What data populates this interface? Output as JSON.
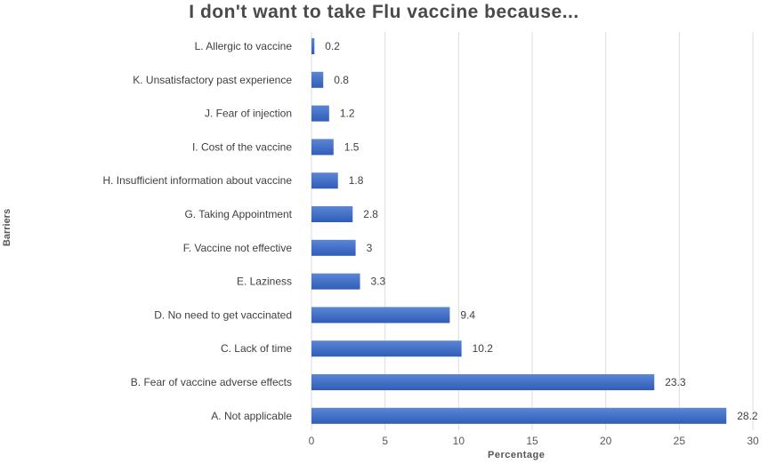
{
  "chart_data": {
    "type": "bar",
    "orientation": "horizontal",
    "title": "I don't want to take Flu vaccine because...",
    "xlabel": "Percentage",
    "ylabel": "Barriers",
    "xlim": [
      0,
      30
    ],
    "xticks": [
      0,
      5,
      10,
      15,
      20,
      25,
      30
    ],
    "grid": true,
    "categories": [
      "L.  Allergic to  vaccine",
      "K.  Unsatisfactory past experience",
      "J.  Fear of injection",
      "I.  Cost of the vaccine",
      "H.  Insufficient information about vaccine",
      "G.  Taking Appointment",
      "F. Vaccine  not effective",
      "E. Laziness",
      "D. No need to get vaccinated",
      "C. Lack of time",
      "B. Fear of vaccine adverse effects",
      "A. Not applicable"
    ],
    "values": [
      0.2,
      0.8,
      1.2,
      1.5,
      1.8,
      2.8,
      3,
      3.3,
      9.4,
      10.2,
      23.3,
      28.2
    ],
    "colors": {
      "bar_top": "#5b86d6",
      "bar_bottom": "#2f5db8",
      "grid": "#d9dde8"
    }
  }
}
